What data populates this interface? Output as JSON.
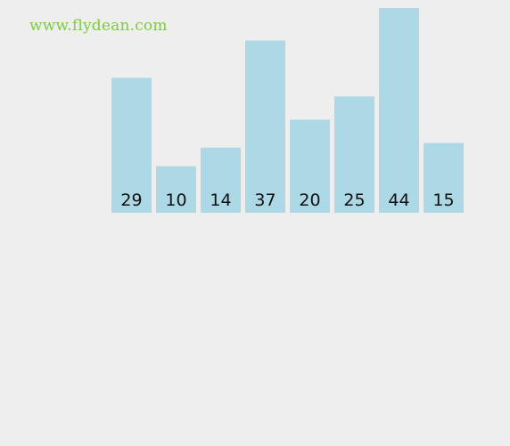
{
  "watermark": {
    "text": "www.flydean.com",
    "color": "#7ccd3a"
  },
  "chart_data": {
    "type": "bar",
    "title": "",
    "xlabel": "",
    "ylabel": "",
    "categories": [
      "29",
      "10",
      "14",
      "37",
      "20",
      "25",
      "44",
      "15"
    ],
    "values": [
      29,
      10,
      14,
      37,
      20,
      25,
      44,
      15
    ],
    "ylim": [
      0,
      44
    ],
    "grid": false,
    "bar_color": "#add8e6",
    "label_placement": "inside-bottom"
  }
}
